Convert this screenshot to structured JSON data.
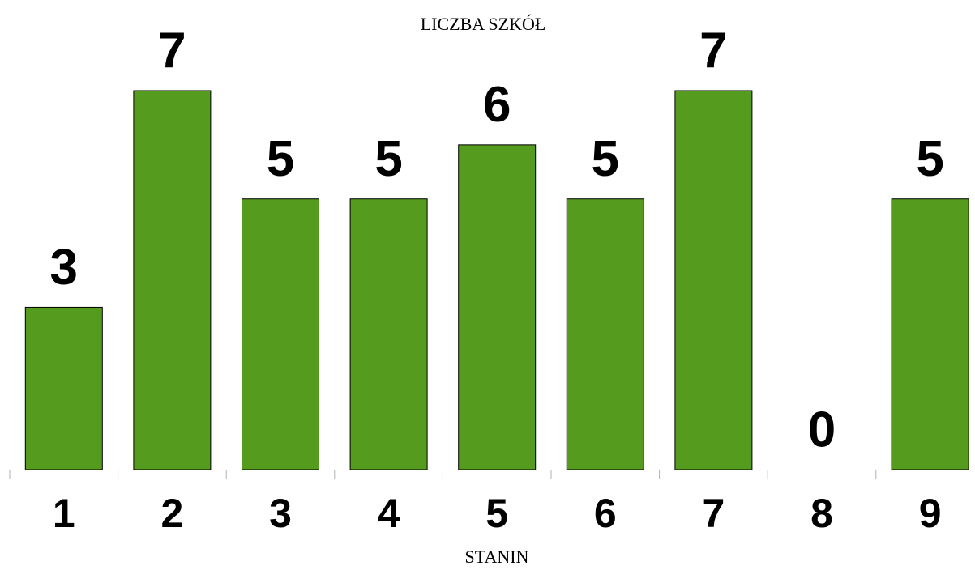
{
  "chart_data": {
    "type": "bar",
    "title": "LICZBA SZKÓŁ",
    "x_label": "STANIN",
    "categories": [
      "1",
      "2",
      "3",
      "4",
      "5",
      "6",
      "7",
      "8",
      "9"
    ],
    "values": [
      3,
      7,
      5,
      5,
      6,
      5,
      7,
      0,
      5
    ],
    "color": "#559c1e",
    "ylim": [
      0,
      7
    ]
  }
}
